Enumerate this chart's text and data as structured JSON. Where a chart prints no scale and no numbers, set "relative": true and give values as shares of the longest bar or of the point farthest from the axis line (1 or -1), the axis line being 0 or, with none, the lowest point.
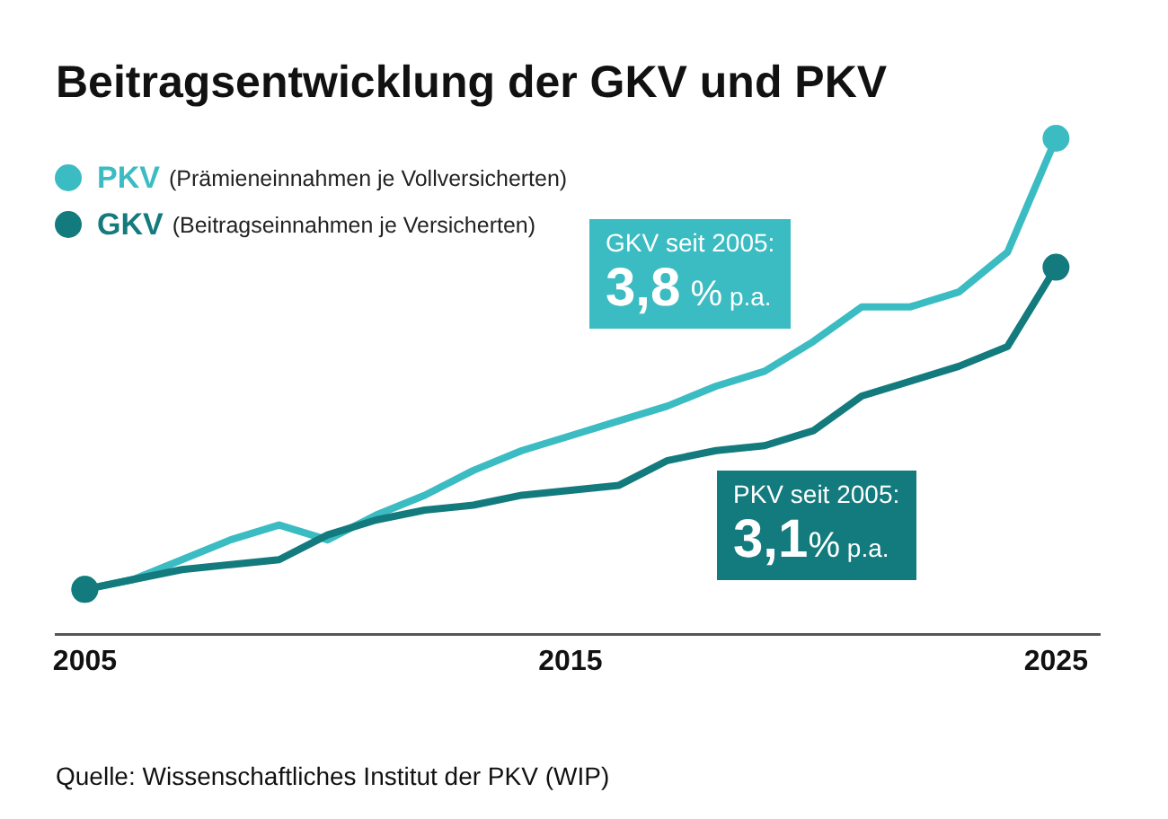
{
  "chart_data": {
    "type": "line",
    "title": "Beitragsentwicklung der GKV und PKV",
    "relative": true,
    "x": [
      2005,
      2006,
      2007,
      2008,
      2009,
      2010,
      2011,
      2012,
      2013,
      2014,
      2015,
      2016,
      2017,
      2018,
      2019,
      2020,
      2021,
      2022,
      2023,
      2024,
      2025
    ],
    "xlim": [
      2004.4,
      2025.9
    ],
    "xticks": [
      2005,
      2015,
      2025
    ],
    "series": [
      {
        "name": "PKV (Prämieneinnahmen je Vollversicherten)",
        "color": "#3bbcc2",
        "values": [
          0.09,
          0.11,
          0.15,
          0.19,
          0.22,
          0.19,
          0.24,
          0.28,
          0.33,
          0.37,
          0.4,
          0.43,
          0.46,
          0.5,
          0.53,
          0.59,
          0.66,
          0.66,
          0.69,
          0.77,
          1
        ]
      },
      {
        "name": "GKV (Beitragseinnahmen je Versicherten)",
        "color": "#137a7d",
        "values": [
          0.09,
          0.11,
          0.13,
          0.14,
          0.15,
          0.2,
          0.23,
          0.25,
          0.26,
          0.28,
          0.29,
          0.3,
          0.35,
          0.37,
          0.38,
          0.41,
          0.48,
          0.51,
          0.54,
          0.58,
          0.74
        ]
      }
    ],
    "annotations": [
      "GKV seit 2005:\n3,8 % p.a.",
      "PKV seit 2005:\n3,1% p.a.",
      "Quelle: Wissenschaftliches Institut der PKV (WIP)"
    ],
    "legend": "top left",
    "line_style": "solid",
    "grid": false
  }
}
